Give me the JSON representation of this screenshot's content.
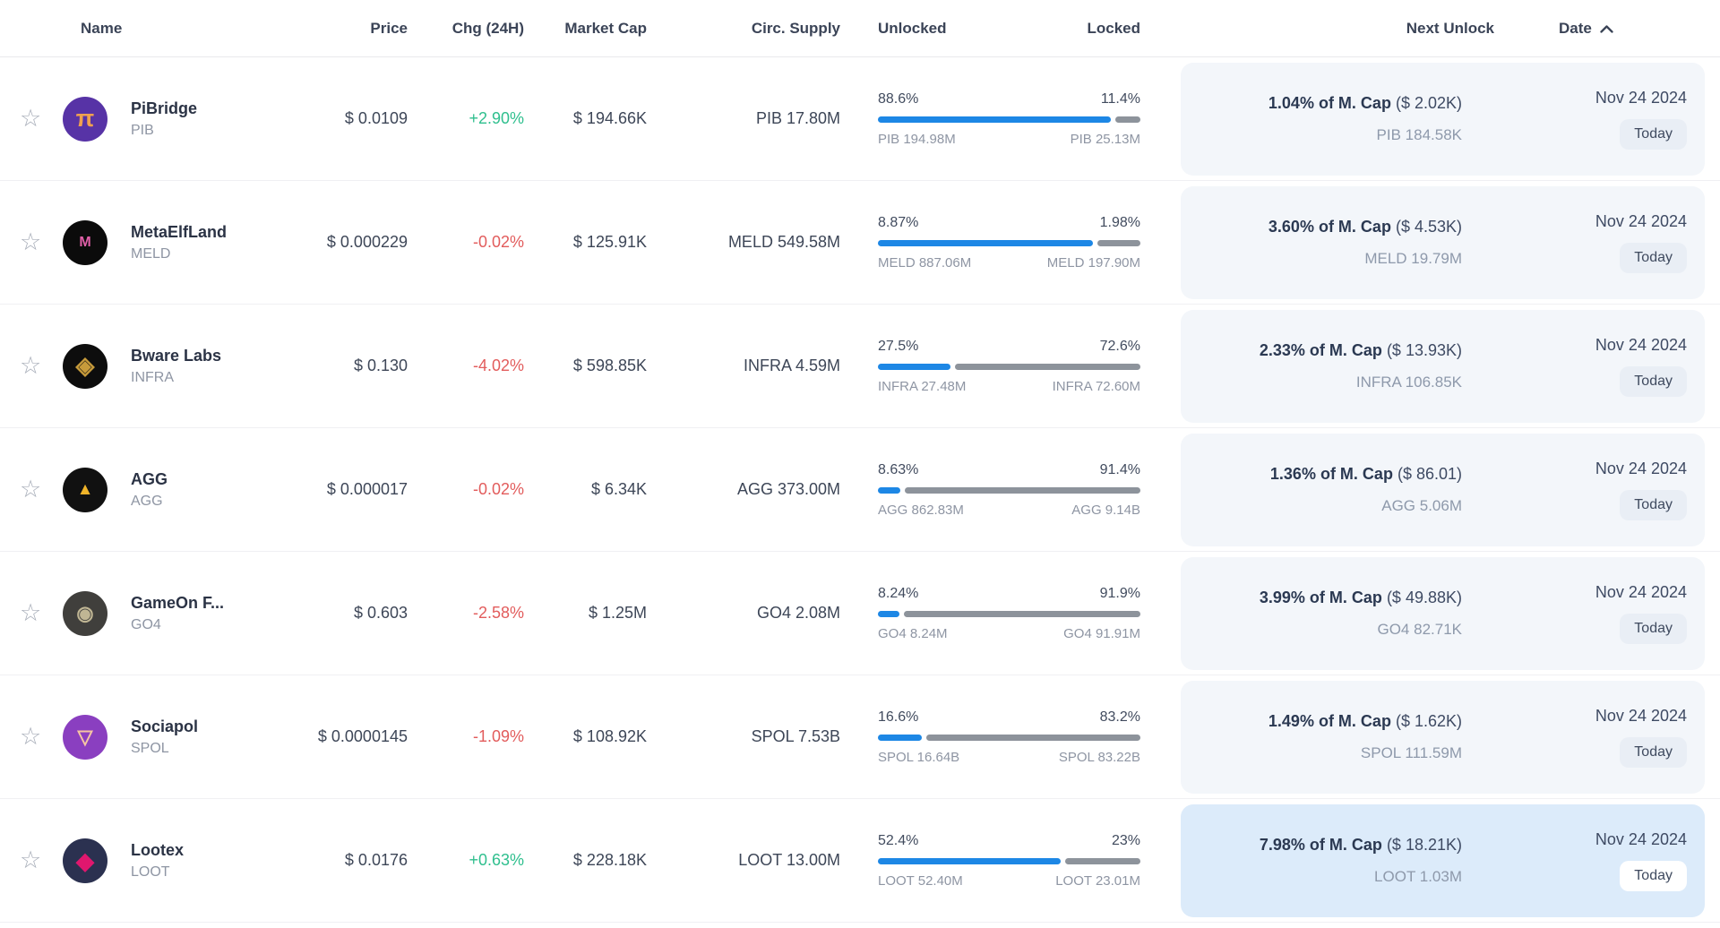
{
  "colors": {
    "positive": "#2fbf8e",
    "negative": "#e25c5c",
    "bar_unlocked": "#1d87e5",
    "bar_locked": "#8d939b",
    "panel_background": "#f3f6fa",
    "panel_highlight_background": "#dcebfa"
  },
  "table": {
    "headers": {
      "name": "Name",
      "price": "Price",
      "chg": "Chg (24H)",
      "market_cap": "Market Cap",
      "circ_supply": "Circ. Supply",
      "unlocked": "Unlocked",
      "locked": "Locked",
      "next_unlock": "Next Unlock",
      "date": "Date"
    },
    "sort": {
      "column": "date",
      "direction": "ascending",
      "icon": "chevron-up-icon"
    },
    "rows": [
      {
        "name": "PiBridge",
        "ticker": "PIB",
        "icon": {
          "glyph": "π",
          "bg": "#5733a6",
          "fg": "#f0a14f",
          "size": "27px"
        },
        "price": "$ 0.0109",
        "chg": "+2.90%",
        "chg_dir": "up",
        "market_cap": "$ 194.66K",
        "circ_supply": "PIB 17.80M",
        "unlocked_pct": "88.6%",
        "locked_pct": "11.4%",
        "unlocked_amt": "PIB 194.98M",
        "locked_amt": "PIB 25.13M",
        "bar_fill": 88.6,
        "next_unlock_pct": "1.04% of M. Cap",
        "next_unlock_usd": "($ 2.02K)",
        "next_unlock_amt": "PIB 184.58K",
        "date": "Nov 24 2024",
        "date_badge": "Today",
        "highlight": false
      },
      {
        "name": "MetaElfLand",
        "ticker": "MELD",
        "icon": {
          "glyph": "M",
          "bg": "#0b0b0b",
          "fg": "#e060a8",
          "size": "16px"
        },
        "price": "$ 0.000229",
        "chg": "-0.02%",
        "chg_dir": "down",
        "market_cap": "$ 125.91K",
        "circ_supply": "MELD 549.58M",
        "unlocked_pct": "8.87%",
        "locked_pct": "1.98%",
        "unlocked_amt": "MELD 887.06M",
        "locked_amt": "MELD 197.90M",
        "bar_fill": 81.8,
        "next_unlock_pct": "3.60% of M. Cap",
        "next_unlock_usd": "($ 4.53K)",
        "next_unlock_amt": "MELD 19.79M",
        "date": "Nov 24 2024",
        "date_badge": "Today",
        "highlight": false
      },
      {
        "name": "Bware Labs",
        "ticker": "INFRA",
        "icon": {
          "glyph": "◈",
          "bg": "#0d0d0d",
          "fg": "#c79b3b",
          "size": "27px"
        },
        "price": "$ 0.130",
        "chg": "-4.02%",
        "chg_dir": "down",
        "market_cap": "$ 598.85K",
        "circ_supply": "INFRA 4.59M",
        "unlocked_pct": "27.5%",
        "locked_pct": "72.6%",
        "unlocked_amt": "INFRA 27.48M",
        "locked_amt": "INFRA 72.60M",
        "bar_fill": 27.5,
        "next_unlock_pct": "2.33% of M. Cap",
        "next_unlock_usd": "($ 13.93K)",
        "next_unlock_amt": "INFRA 106.85K",
        "date": "Nov 24 2024",
        "date_badge": "Today",
        "highlight": false
      },
      {
        "name": "AGG",
        "ticker": "AGG",
        "icon": {
          "glyph": "▲",
          "bg": "#111111",
          "fg": "#f0b429",
          "size": "19px"
        },
        "price": "$ 0.000017",
        "chg": "-0.02%",
        "chg_dir": "down",
        "market_cap": "$ 6.34K",
        "circ_supply": "AGG 373.00M",
        "unlocked_pct": "8.63%",
        "locked_pct": "91.4%",
        "unlocked_amt": "AGG 862.83M",
        "locked_amt": "AGG 9.14B",
        "bar_fill": 8.6,
        "next_unlock_pct": "1.36% of M. Cap",
        "next_unlock_usd": "($ 86.01)",
        "next_unlock_amt": "AGG 5.06M",
        "date": "Nov 24 2024",
        "date_badge": "Today",
        "highlight": false
      },
      {
        "name": "GameOn F...",
        "ticker": "GO4",
        "icon": {
          "glyph": "◉",
          "bg": "#403f3c",
          "fg": "#c0b694",
          "size": "22px"
        },
        "price": "$ 0.603",
        "chg": "-2.58%",
        "chg_dir": "down",
        "market_cap": "$ 1.25M",
        "circ_supply": "GO4 2.08M",
        "unlocked_pct": "8.24%",
        "locked_pct": "91.9%",
        "unlocked_amt": "GO4 8.24M",
        "locked_amt": "GO4 91.91M",
        "bar_fill": 8.2,
        "next_unlock_pct": "3.99% of M. Cap",
        "next_unlock_usd": "($ 49.88K)",
        "next_unlock_amt": "GO4 82.71K",
        "date": "Nov 24 2024",
        "date_badge": "Today",
        "highlight": false
      },
      {
        "name": "Sociapol",
        "ticker": "SPOL",
        "icon": {
          "glyph": "▽",
          "bg": "#8a3fc0",
          "fg": "#f6c6a2",
          "size": "22px"
        },
        "price": "$ 0.0000145",
        "chg": "-1.09%",
        "chg_dir": "down",
        "market_cap": "$ 108.92K",
        "circ_supply": "SPOL 7.53B",
        "unlocked_pct": "16.6%",
        "locked_pct": "83.2%",
        "unlocked_amt": "SPOL 16.64B",
        "locked_amt": "SPOL 83.22B",
        "bar_fill": 16.7,
        "next_unlock_pct": "1.49% of M. Cap",
        "next_unlock_usd": "($ 1.62K)",
        "next_unlock_amt": "SPOL 111.59M",
        "date": "Nov 24 2024",
        "date_badge": "Today",
        "highlight": false
      },
      {
        "name": "Lootex",
        "ticker": "LOOT",
        "icon": {
          "glyph": "◆",
          "bg": "#2b3150",
          "fg": "#e0176e",
          "size": "26px"
        },
        "price": "$ 0.0176",
        "chg": "+0.63%",
        "chg_dir": "up",
        "market_cap": "$ 228.18K",
        "circ_supply": "LOOT 13.00M",
        "unlocked_pct": "52.4%",
        "locked_pct": "23%",
        "unlocked_amt": "LOOT 52.40M",
        "locked_amt": "LOOT 23.01M",
        "bar_fill": 69.5,
        "next_unlock_pct": "7.98% of M. Cap",
        "next_unlock_usd": "($ 18.21K)",
        "next_unlock_amt": "LOOT 1.03M",
        "date": "Nov 24 2024",
        "date_badge": "Today",
        "highlight": true
      }
    ]
  }
}
